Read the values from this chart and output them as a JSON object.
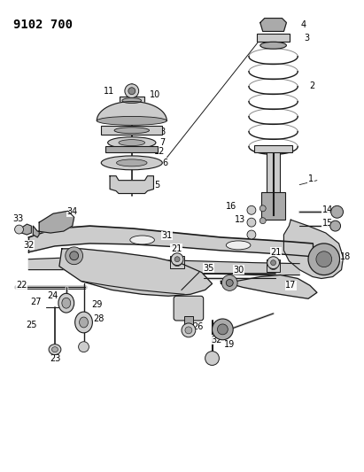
{
  "title": "9102 700",
  "bg_color": "#ffffff",
  "line_color": "#1a1a1a",
  "text_color": "#000000",
  "title_fontsize": 10,
  "label_fontsize": 7,
  "fig_width": 4.11,
  "fig_height": 5.33,
  "dpi": 100
}
